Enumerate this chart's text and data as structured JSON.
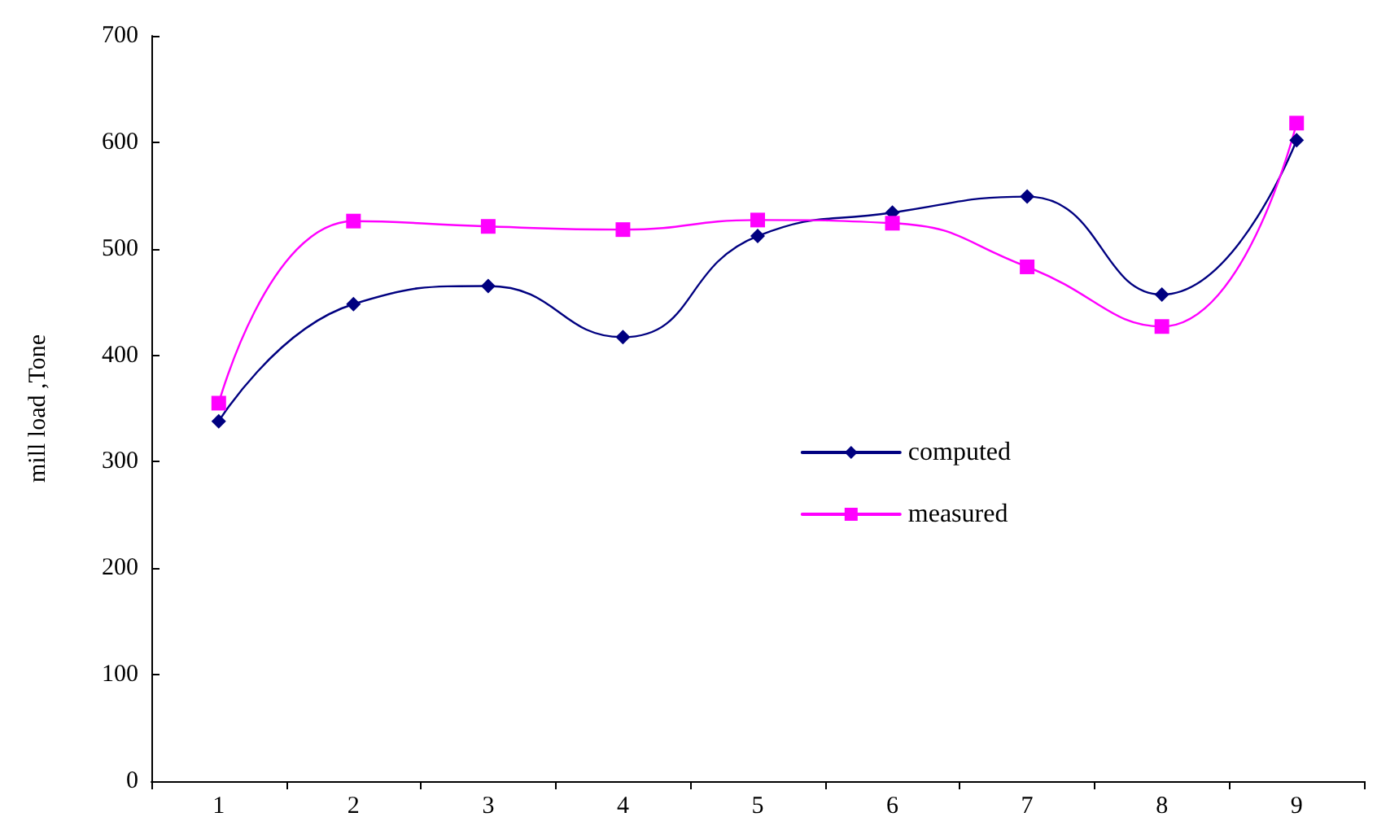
{
  "chart_data": {
    "type": "line",
    "ylabel": "mill load ,Tone",
    "categories": [
      "1",
      "2",
      "3",
      "4",
      "5",
      "6",
      "7",
      "8",
      "9"
    ],
    "series": [
      {
        "name": "computed",
        "color": "#000080",
        "marker": "diamond",
        "values": [
          338,
          448,
          465,
          417,
          512,
          534,
          549,
          457,
          602
        ]
      },
      {
        "name": "measured",
        "color": "#ff00ff",
        "marker": "square",
        "values": [
          355,
          526,
          521,
          518,
          527,
          524,
          483,
          427,
          618
        ]
      }
    ],
    "ylim": [
      0,
      700
    ],
    "yticks": [
      0,
      100,
      200,
      300,
      400,
      500,
      600,
      700
    ],
    "grid": false,
    "legend": "right",
    "line_style": "solid"
  }
}
